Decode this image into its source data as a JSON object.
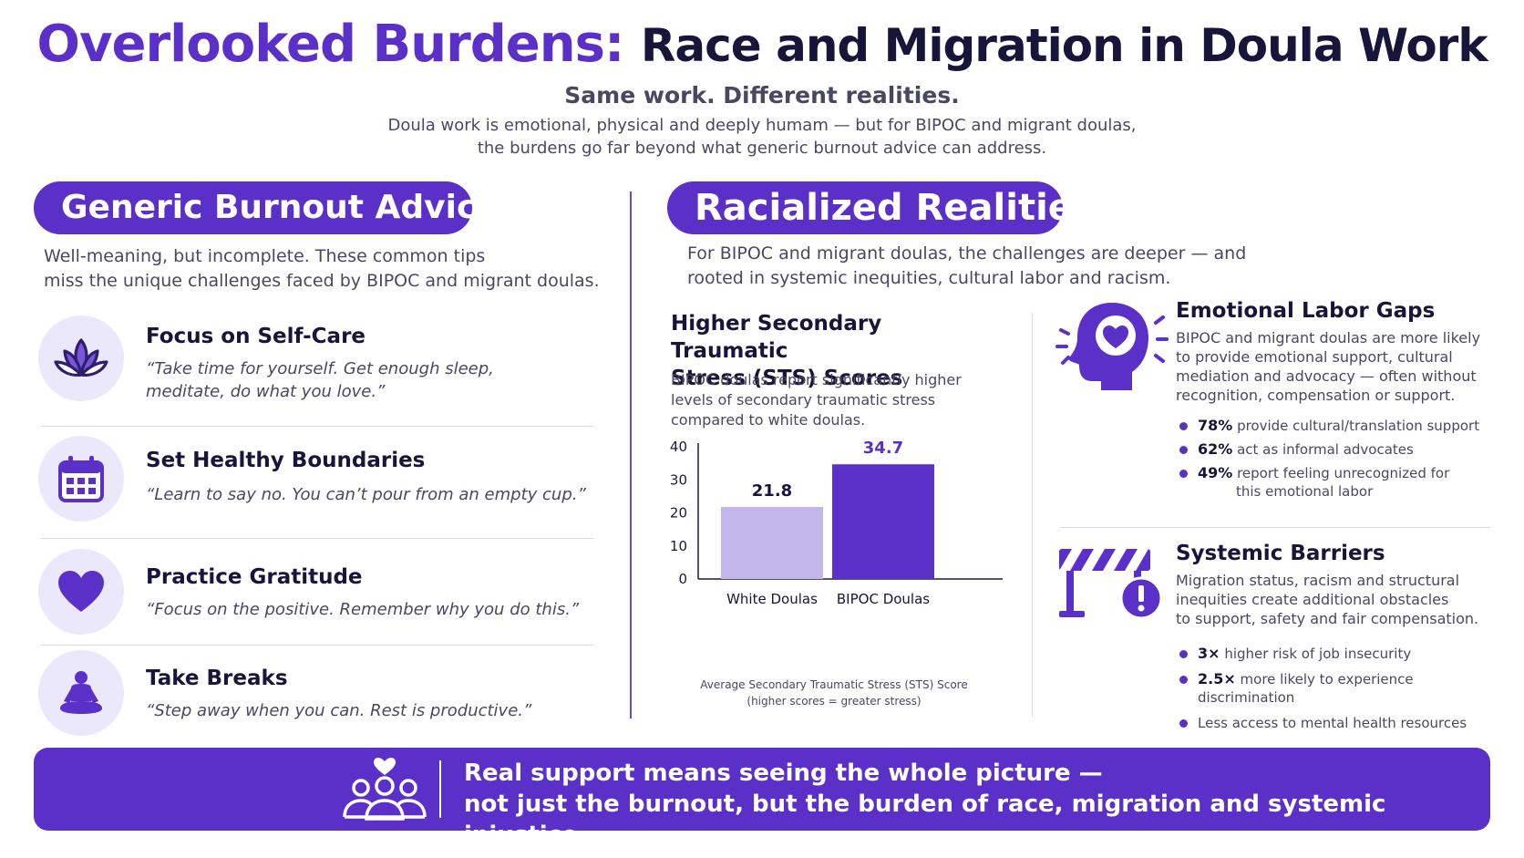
{
  "header": {
    "title_part1": "Overlooked Burdens:",
    "title_part2": "Race and Migration in Doula Work",
    "subtitle": "Same work. Different realities.",
    "intro_line1": "Doula work is emotional, physical and deeply humam — but for BIPOC and migrant doulas,",
    "intro_line2": "the burdens go far beyond what generic burnout advice can address."
  },
  "left": {
    "heading": "Generic Burnout Advice",
    "desc_line1": "Well-meaning, but incomplete. These common tips",
    "desc_line2": "miss the unique challenges faced by BIPOC and migrant doulas.",
    "tips": [
      {
        "title": "Focus on Self-Care",
        "quote_line1": "“Take time for yourself. Get enough sleep,",
        "quote_line2": "meditate, do what you love.”",
        "icon": "lotus-icon"
      },
      {
        "title": "Set Healthy Boundaries",
        "quote_line1": "“Learn to say no. You can’t pour from an empty cup.”",
        "icon": "calendar-icon"
      },
      {
        "title": "Practice Gratitude",
        "quote_line1": "“Focus on the positive. Remember why you do this.”",
        "icon": "heart-icon"
      },
      {
        "title": "Take Breaks",
        "quote_line1": "“Step away when you can. Rest is productive.”",
        "icon": "meditation-icon"
      }
    ]
  },
  "right": {
    "heading": "Racialized Realities",
    "desc_line1": "For BIPOC and migrant doulas, the challenges are deeper — and",
    "desc_line2": "rooted in systemic inequities, cultural labor and racism.",
    "chart_title_line1": "Higher Secondary Traumatic",
    "chart_title_line2": "Stress (STS) Scores",
    "chart_desc_line1": "BIPOC doulas report significantly higher",
    "chart_desc_line2": "levels of secondary traumatic stress",
    "chart_desc_line3": "compared to white doulas.",
    "chart_note_line1": "Average Secondary Traumatic Stress (STS) Score",
    "chart_note_line2": "(higher scores = greater stress)",
    "emotional": {
      "title": "Emotional Labor Gaps",
      "desc_line1": "BIPOC and migrant doulas are more likely",
      "desc_line2": "to provide emotional support, cultural",
      "desc_line3": "mediation and advocacy — often without",
      "desc_line4": "recognition, compensation or support.",
      "bullets": [
        {
          "stat": "78%",
          "text": "provide cultural/translation support"
        },
        {
          "stat": "62%",
          "text": "act as informal advocates"
        },
        {
          "stat": "49%",
          "text": "report feeling unrecognized for",
          "text2": "this emotional labor"
        }
      ]
    },
    "systemic": {
      "title": "Systemic Barriers",
      "desc_line1": "Migration status, racism and structural",
      "desc_line2": "inequities create additional obstacles",
      "desc_line3": "to support, safety and fair compensation.",
      "bullets": [
        {
          "stat": "3×",
          "text": "higher risk of job insecurity"
        },
        {
          "stat": "2.5×",
          "text": "more likely to experience discrimination"
        },
        {
          "stat": "",
          "text": "Less access to mental health resources"
        }
      ]
    }
  },
  "chart_data": {
    "type": "bar",
    "title": "Higher Secondary Traumatic Stress (STS) Scores",
    "categories": [
      "White Doulas",
      "BIPOC Doulas"
    ],
    "values": [
      21.8,
      34.7
    ],
    "value_labels": [
      "21.8",
      "34.7"
    ],
    "colors": [
      "#c3b6ea",
      "#5a30c8"
    ],
    "ylim": [
      0,
      40
    ],
    "yticks": [
      0,
      10,
      20,
      30,
      40
    ],
    "xlabel": "",
    "ylabel": "",
    "grid": false
  },
  "footer": {
    "line1": "Real support means seeing the whole picture —",
    "line2": "not just the burnout, but the burden of race, migration and systemic injustice.",
    "icon": "community-heart-icon"
  },
  "colors": {
    "accent": "#5a30c8",
    "accent_light": "#c3b6ea",
    "icon_bg": "#ece8fb",
    "text_dark": "#17153a",
    "text_body": "#4a4860"
  }
}
